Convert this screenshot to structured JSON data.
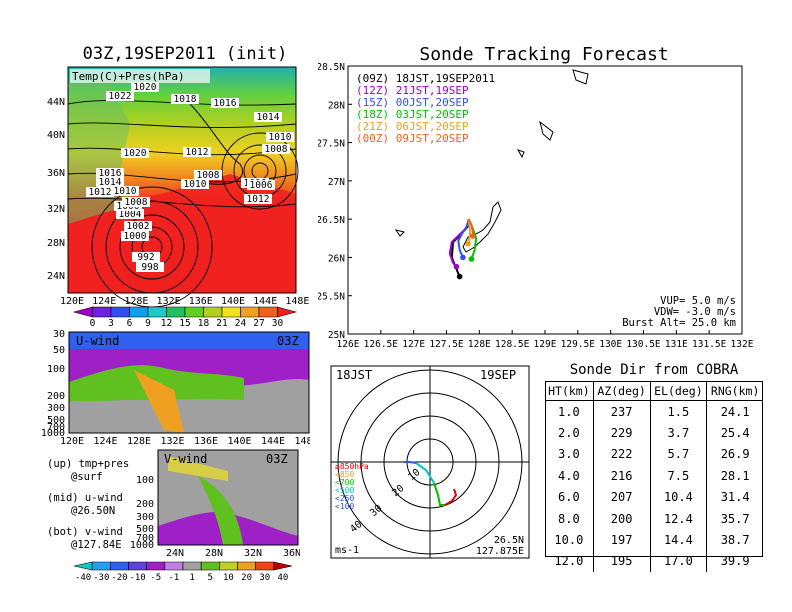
{
  "map_panel": {
    "title": "03Z,19SEP2011 (init)",
    "label": "Temp(C)+Pres(hPa)",
    "lat_ticks": [
      "44N",
      "40N",
      "36N",
      "32N",
      "28N",
      "24N"
    ],
    "lon_ticks": [
      "120E",
      "124E",
      "128E",
      "132E",
      "136E",
      "140E",
      "144E",
      "148E"
    ],
    "pressure_labels": [
      "1020",
      "1022",
      "1018",
      "1016",
      "1014",
      "1010",
      "1008",
      "1020",
      "1016",
      "1014",
      "1012",
      "1010",
      "1012",
      "1010",
      "1008",
      "1004",
      "1006",
      "1008",
      "1006",
      "1012",
      "1002",
      "1000",
      "992",
      "998",
      "1006"
    ],
    "colorbar_ticks": [
      "0",
      "3",
      "6",
      "9",
      "12",
      "15",
      "18",
      "21",
      "24",
      "27",
      "30"
    ],
    "colorbar_colors": [
      "#a000c8",
      "#7020e0",
      "#3050f0",
      "#10a0f0",
      "#20c8c8",
      "#20c060",
      "#60d020",
      "#b0d020",
      "#f0e020",
      "#f0a020",
      "#f06020",
      "#f02020"
    ]
  },
  "u_wind_panel": {
    "label": "U-wind",
    "time": "03Z",
    "y_ticks": [
      "30",
      "50",
      "100",
      "200",
      "300",
      "500",
      "700",
      "1000"
    ],
    "x_ticks": [
      "120E",
      "124E",
      "128E",
      "132E",
      "136E",
      "140E",
      "144E",
      "148E"
    ]
  },
  "v_wind_panel": {
    "label": "V-wind",
    "time": "03Z",
    "y_ticks": [
      "100",
      "200",
      "300",
      "500",
      "700",
      "1000"
    ],
    "x_ticks": [
      "24N",
      "28N",
      "32N",
      "36N"
    ]
  },
  "wind_colorbar": {
    "ticks": [
      "-40",
      "-30",
      "-20",
      "-10",
      "-5",
      "-1",
      "1",
      "5",
      "10",
      "20",
      "30",
      "40"
    ],
    "colors": [
      "#10c8c8",
      "#20a0f0",
      "#3060f0",
      "#6040e0",
      "#a020c8",
      "#c080e0",
      "#a0a0a0",
      "#60c020",
      "#c0d020",
      "#f0a020",
      "#f04020",
      "#c00000"
    ]
  },
  "legend_notes": [
    {
      "line1": "(up) tmp+pres",
      "line2": "@surf"
    },
    {
      "line1": "(mid) u-wind",
      "line2": "@26.50N"
    },
    {
      "line1": "(bot) v-wind",
      "line2": "@127.84E"
    }
  ],
  "tracking_panel": {
    "title": "Sonde Tracking Forecast",
    "lat_ticks": [
      "28.5N",
      "28N",
      "27.5N",
      "27N",
      "26.5N",
      "26N",
      "25.5N",
      "25N"
    ],
    "lon_ticks": [
      "126E",
      "126.5E",
      "127E",
      "127.5E",
      "128E",
      "128.5E",
      "129E",
      "129.5E",
      "130E",
      "130.5E",
      "131E",
      "131.5E",
      "132E"
    ],
    "legend": [
      {
        "text": "(09Z) 18JST,19SEP2011",
        "color": "#000000"
      },
      {
        "text": "(12Z) 21JST,19SEP",
        "color": "#a000c8"
      },
      {
        "text": "(15Z) 00JST,20SEP",
        "color": "#3050f0"
      },
      {
        "text": "(18Z) 03JST,20SEP",
        "color": "#00c000"
      },
      {
        "text": "(21Z) 06JST,20SEP",
        "color": "#f0a020"
      },
      {
        "text": "(00Z) 09JST,20SEP",
        "color": "#f06020"
      }
    ],
    "info": [
      "VUP= 5.0 m/s",
      "VDW= -3.0 m/s",
      "Burst Alt= 25.0 km"
    ]
  },
  "polar_panel": {
    "time_label": "18JST",
    "date_label": "19SEP",
    "legend": [
      {
        "text": "≥850hPa",
        "color": "#e00000"
      },
      {
        "text": "<850",
        "color": "#f0a020"
      },
      {
        "text": "<700",
        "color": "#00c000"
      },
      {
        "text": "<500",
        "color": "#00c8c8"
      },
      {
        "text": "<250",
        "color": "#3050f0"
      },
      {
        "text": "<100",
        "color": "#3050f0"
      }
    ],
    "ring_labels": [
      "10",
      "20",
      "30",
      "40"
    ],
    "unit": "ms-1",
    "lat": "26.5N",
    "lon": "127.875E"
  },
  "sonde_table": {
    "title": "Sonde Dir from COBRA",
    "headers": [
      "HT(km)",
      "AZ(deg)",
      "EL(deg)",
      "RNG(km)"
    ],
    "rows": [
      [
        "1.0",
        "237",
        "1.5",
        "24.1"
      ],
      [
        "2.0",
        "229",
        "3.7",
        "25.4"
      ],
      [
        "3.0",
        "222",
        "5.7",
        "26.9"
      ],
      [
        "4.0",
        "216",
        "7.5",
        "28.1"
      ],
      [
        "6.0",
        "207",
        "10.4",
        "31.4"
      ],
      [
        "8.0",
        "200",
        "12.4",
        "35.7"
      ],
      [
        "10.0",
        "197",
        "14.4",
        "38.7"
      ],
      [
        "12.0",
        "195",
        "17.0",
        "39.9"
      ]
    ]
  },
  "chart_data": [
    {
      "type": "heatmap",
      "title": "03Z,19SEP2011 (init)",
      "subtitle": "Temp(C)+Pres(hPa)",
      "x_ticks": [
        "120E",
        "124E",
        "128E",
        "132E",
        "136E",
        "140E",
        "144E",
        "148E"
      ],
      "y_ticks": [
        "24N",
        "28N",
        "32N",
        "36N",
        "40N",
        "44N"
      ],
      "colorbar": [
        0,
        3,
        6,
        9,
        12,
        15,
        18,
        21,
        24,
        27,
        30
      ],
      "pressure_contour_labels": [
        1020,
        1022,
        1018,
        1016,
        1014,
        1010,
        1008,
        1020,
        1016,
        1014,
        1012,
        1010,
        1012,
        1010,
        1008,
        1004,
        1006,
        1008,
        1006,
        1012,
        1002,
        1000,
        992,
        998,
        1006
      ]
    },
    {
      "type": "heatmap",
      "title": "U-wind",
      "subtitle": "03Z",
      "x_ticks": [
        "120E",
        "124E",
        "128E",
        "132E",
        "136E",
        "140E",
        "144E",
        "148E"
      ],
      "y_ticks": [
        30,
        50,
        100,
        200,
        300,
        500,
        700,
        1000
      ],
      "colorbar": [
        -40,
        -30,
        -20,
        -10,
        -5,
        -1,
        1,
        5,
        10,
        20,
        30,
        40
      ]
    },
    {
      "type": "heatmap",
      "title": "V-wind",
      "subtitle": "03Z",
      "x_ticks": [
        "24N",
        "28N",
        "32N",
        "36N"
      ],
      "y_ticks": [
        100,
        200,
        300,
        500,
        700,
        1000
      ],
      "colorbar": [
        -40,
        -30,
        -20,
        -10,
        -5,
        -1,
        1,
        5,
        10,
        20,
        30,
        40
      ]
    },
    {
      "type": "line",
      "title": "Sonde Tracking Forecast",
      "xlim": [
        126,
        132
      ],
      "ylim": [
        25,
        28.5
      ],
      "series": [
        {
          "name": "(09Z) 18JST,19SEP2011",
          "color": "#000000",
          "x": [
            127.84,
            127.82,
            127.72,
            127.6,
            127.58,
            127.65,
            127.7
          ],
          "y": [
            26.5,
            26.4,
            26.3,
            26.2,
            26.0,
            25.85,
            25.75
          ]
        },
        {
          "name": "(12Z) 21JST,19SEP",
          "color": "#a000c8",
          "x": [
            127.84,
            127.8,
            127.7,
            127.58,
            127.55,
            127.6,
            127.65
          ],
          "y": [
            26.5,
            26.38,
            26.3,
            26.2,
            26.05,
            25.93,
            25.88
          ]
        },
        {
          "name": "(15Z) 00JST,20SEP",
          "color": "#3050f0",
          "x": [
            127.84,
            127.82,
            127.75,
            127.68,
            127.7,
            127.75
          ],
          "y": [
            26.5,
            26.42,
            26.33,
            26.22,
            26.1,
            26.0
          ]
        },
        {
          "name": "(18Z) 03JST,20SEP",
          "color": "#00c000",
          "x": [
            127.84,
            127.9,
            127.95,
            127.93,
            127.88
          ],
          "y": [
            26.5,
            26.38,
            26.25,
            26.1,
            25.98
          ]
        },
        {
          "name": "(21Z) 06JST,20SEP",
          "color": "#f0a020",
          "x": [
            127.84,
            127.85,
            127.86,
            127.83
          ],
          "y": [
            26.5,
            26.4,
            26.3,
            26.18
          ]
        },
        {
          "name": "(00Z) 09JST,20SEP",
          "color": "#f06020",
          "x": [
            127.84,
            127.88,
            127.9,
            127.9
          ],
          "y": [
            26.5,
            26.42,
            26.33,
            26.28
          ]
        }
      ]
    },
    {
      "type": "scatter",
      "title": "Sonde Dir from COBRA",
      "columns": [
        "HT(km)",
        "AZ(deg)",
        "EL(deg)",
        "RNG(km)"
      ],
      "rows": [
        [
          1.0,
          237,
          1.5,
          24.1
        ],
        [
          2.0,
          229,
          3.7,
          25.4
        ],
        [
          3.0,
          222,
          5.7,
          26.9
        ],
        [
          4.0,
          216,
          7.5,
          28.1
        ],
        [
          6.0,
          207,
          10.4,
          31.4
        ],
        [
          8.0,
          200,
          12.4,
          35.7
        ],
        [
          10.0,
          197,
          14.4,
          38.7
        ],
        [
          12.0,
          195,
          17.0,
          39.9
        ]
      ]
    }
  ]
}
